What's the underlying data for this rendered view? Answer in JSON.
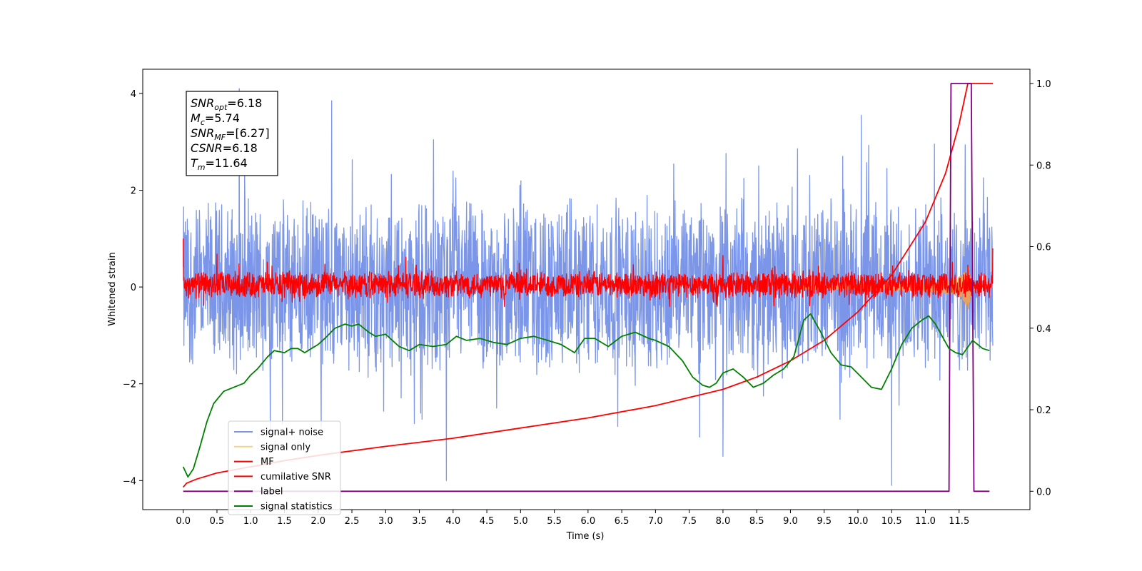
{
  "chart_data": {
    "type": "line",
    "title": "",
    "xlabel": "Time (s)",
    "ylabel": "Whitened strain",
    "xlim": [
      -0.6,
      12.55
    ],
    "ylim": [
      -4.6,
      4.5
    ],
    "y2lim": [
      -0.045,
      1.035
    ],
    "x_ticks": [
      0.0,
      0.5,
      1.0,
      1.5,
      2.0,
      2.5,
      3.0,
      3.5,
      4.0,
      4.5,
      5.0,
      5.5,
      6.0,
      6.5,
      7.0,
      7.5,
      8.0,
      8.5,
      9.0,
      9.5,
      10.0,
      10.5,
      11.0,
      11.5
    ],
    "x_tick_labels": [
      "0.0",
      "0.5",
      "1.0",
      "1.5",
      "2.0",
      "2.5",
      "3.0",
      "3.5",
      "4.0",
      "4.5",
      "5.0",
      "5.5",
      "6.0",
      "6.5",
      "7.0",
      "7.5",
      "8.0",
      "8.5",
      "9.0",
      "9.5",
      "10.0",
      "10.5",
      "11.0",
      "11.5"
    ],
    "y_ticks": [
      -4,
      -2,
      0,
      2,
      4
    ],
    "y_tick_labels": [
      "−4",
      "−2",
      "0",
      "2",
      "4"
    ],
    "y2_ticks": [
      0.0,
      0.2,
      0.4,
      0.6,
      0.8,
      1.0
    ],
    "y2_tick_labels": [
      "0.0",
      "0.2",
      "0.4",
      "0.6",
      "0.8",
      "1.0"
    ],
    "grid": false,
    "legend_position": "lower-left",
    "legend": [
      {
        "label": "signal+ noise",
        "color": "#7b96e8"
      },
      {
        "label": "signal only",
        "color": "#f5d28a"
      },
      {
        "label": "MF",
        "color": "#ff0000"
      },
      {
        "label": "cumilative SNR",
        "color": "#ff0000"
      },
      {
        "label": "label",
        "color": "#800080"
      },
      {
        "label": "signal statistics",
        "color": "#008000"
      }
    ],
    "annotation": {
      "lines": [
        {
          "sym": "SNR",
          "sub": "opt",
          "val": "=6.18"
        },
        {
          "sym": "M",
          "sub": "c",
          "val": "=5.74"
        },
        {
          "sym": "SNR",
          "sub": "MF",
          "val": "=[6.27]"
        },
        {
          "sym": "CSNR",
          "sub": "",
          "val": "=6.18"
        },
        {
          "sym": "T",
          "sub": "m",
          "val": "=11.64"
        }
      ]
    },
    "series": [
      {
        "name": "signal+ noise",
        "axis": "left",
        "color": "#7b96e8",
        "style": "noise",
        "x_range": [
          0.0,
          12.0
        ],
        "band": [
          -1.95,
          1.95
        ],
        "peaks": [
          {
            "x": 0.83,
            "y": 4.1
          },
          {
            "x": 2.2,
            "y": 3.85
          },
          {
            "x": 10.05,
            "y": 3.55
          },
          {
            "x": 10.5,
            "y": -4.1
          },
          {
            "x": 3.9,
            "y": -4.0
          },
          {
            "x": 8.0,
            "y": -3.5
          }
        ]
      },
      {
        "name": "signal only",
        "axis": "left",
        "color": "#e8a060",
        "style": "chirp",
        "x_range": [
          9.0,
          12.0
        ],
        "peak_x": 11.63,
        "peak_amp": 0.55
      },
      {
        "name": "MF",
        "axis": "left",
        "color": "#ff0000",
        "style": "noise",
        "x_range": [
          0.0,
          12.0
        ],
        "band": [
          -0.25,
          0.35
        ],
        "peaks": [
          {
            "x": 0.0,
            "y": 1.0
          },
          {
            "x": 12.0,
            "y": 0.8
          },
          {
            "x": 0.5,
            "y": 0.68
          },
          {
            "x": 3.3,
            "y": 0.62
          },
          {
            "x": 8.0,
            "y": 0.65
          },
          {
            "x": 11.63,
            "y": 0.45
          }
        ]
      },
      {
        "name": "cumilative SNR",
        "axis": "right",
        "color": "#ff0000",
        "style": "line",
        "x": [
          0.0,
          0.05,
          0.2,
          0.5,
          1.0,
          1.5,
          2.0,
          3.0,
          4.0,
          5.0,
          6.0,
          7.0,
          8.0,
          8.5,
          9.0,
          9.5,
          10.0,
          10.5,
          11.0,
          11.3,
          11.5,
          11.63,
          11.7,
          12.0
        ],
        "y": [
          0.01,
          0.02,
          0.03,
          0.045,
          0.06,
          0.075,
          0.088,
          0.11,
          0.13,
          0.155,
          0.18,
          0.21,
          0.25,
          0.28,
          0.32,
          0.37,
          0.44,
          0.53,
          0.66,
          0.78,
          0.9,
          1.0,
          1.0,
          1.0
        ]
      },
      {
        "name": "label",
        "axis": "right",
        "color": "#800080",
        "style": "line",
        "x": [
          0.0,
          11.35,
          11.38,
          11.68,
          11.72,
          11.95
        ],
        "y": [
          0.0,
          0.0,
          1.0,
          1.0,
          0.0,
          0.0
        ]
      },
      {
        "name": "signal statistics",
        "axis": "right",
        "color": "#008000",
        "style": "line",
        "x": [
          0.0,
          0.07,
          0.15,
          0.25,
          0.35,
          0.45,
          0.6,
          0.75,
          0.9,
          1.0,
          1.1,
          1.25,
          1.35,
          1.5,
          1.6,
          1.7,
          1.8,
          1.9,
          2.0,
          2.1,
          2.25,
          2.4,
          2.5,
          2.6,
          2.75,
          2.85,
          3.0,
          3.2,
          3.35,
          3.5,
          3.7,
          3.9,
          4.05,
          4.2,
          4.4,
          4.6,
          4.8,
          5.0,
          5.2,
          5.4,
          5.6,
          5.8,
          5.95,
          6.1,
          6.3,
          6.5,
          6.7,
          6.9,
          7.0,
          7.2,
          7.4,
          7.55,
          7.7,
          7.8,
          7.9,
          8.0,
          8.15,
          8.3,
          8.45,
          8.6,
          8.75,
          8.9,
          9.05,
          9.2,
          9.3,
          9.45,
          9.6,
          9.75,
          9.9,
          10.05,
          10.2,
          10.35,
          10.5,
          10.65,
          10.8,
          10.95,
          11.05,
          11.15,
          11.25,
          11.35,
          11.45,
          11.55,
          11.7,
          11.85,
          11.95
        ],
        "y": [
          0.06,
          0.035,
          0.055,
          0.11,
          0.17,
          0.215,
          0.245,
          0.255,
          0.265,
          0.285,
          0.3,
          0.33,
          0.345,
          0.34,
          0.35,
          0.35,
          0.34,
          0.35,
          0.36,
          0.375,
          0.4,
          0.41,
          0.405,
          0.41,
          0.39,
          0.38,
          0.385,
          0.355,
          0.345,
          0.36,
          0.355,
          0.36,
          0.38,
          0.37,
          0.375,
          0.365,
          0.36,
          0.375,
          0.38,
          0.37,
          0.36,
          0.34,
          0.375,
          0.375,
          0.355,
          0.38,
          0.39,
          0.375,
          0.37,
          0.355,
          0.32,
          0.28,
          0.26,
          0.255,
          0.265,
          0.29,
          0.3,
          0.28,
          0.255,
          0.265,
          0.285,
          0.3,
          0.33,
          0.42,
          0.435,
          0.39,
          0.34,
          0.31,
          0.305,
          0.28,
          0.255,
          0.25,
          0.3,
          0.36,
          0.4,
          0.42,
          0.43,
          0.41,
          0.38,
          0.35,
          0.34,
          0.335,
          0.37,
          0.35,
          0.345
        ]
      }
    ]
  }
}
